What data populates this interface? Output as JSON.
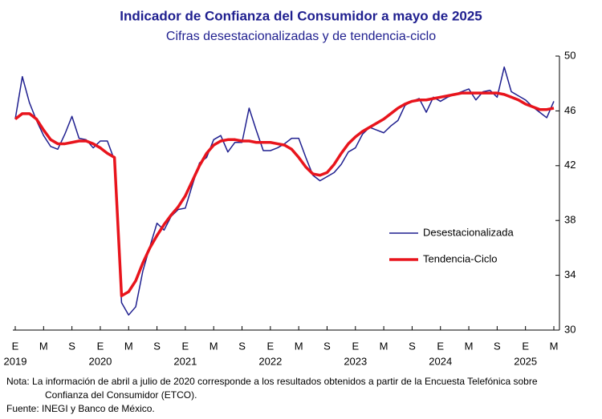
{
  "chart_data": {
    "type": "line",
    "title": "Indicador de Confianza del Consumidor a mayo de 2025",
    "subtitle": "Cifras desestacionalizadas y de tendencia-ciclo",
    "categories": [
      "E",
      null,
      null,
      null,
      "M",
      null,
      null,
      null,
      "S",
      null,
      null,
      null,
      "E",
      null,
      null,
      null,
      "M",
      null,
      null,
      null,
      "S",
      null,
      null,
      null,
      "E",
      null,
      null,
      null,
      "M",
      null,
      null,
      null,
      "S",
      null,
      null,
      null,
      "E",
      null,
      null,
      null,
      "M",
      null,
      null,
      null,
      "S",
      null,
      null,
      null,
      "E",
      null,
      null,
      null,
      "M",
      null,
      null,
      null,
      "S",
      null,
      null,
      null,
      "E",
      null,
      null,
      null,
      "M",
      null,
      null,
      null,
      "S",
      null,
      null,
      null,
      "E",
      null,
      null,
      null,
      "M"
    ],
    "years": [
      "2019",
      null,
      null,
      null,
      null,
      null,
      null,
      null,
      null,
      null,
      null,
      null,
      "2020",
      null,
      null,
      null,
      null,
      null,
      null,
      null,
      null,
      null,
      null,
      null,
      "2021",
      null,
      null,
      null,
      null,
      null,
      null,
      null,
      null,
      null,
      null,
      null,
      "2022",
      null,
      null,
      null,
      null,
      null,
      null,
      null,
      null,
      null,
      null,
      null,
      "2023",
      null,
      null,
      null,
      null,
      null,
      null,
      null,
      null,
      null,
      null,
      null,
      "2024",
      null,
      null,
      null,
      null,
      null,
      null,
      null,
      null,
      null,
      null,
      null,
      "2025",
      null,
      null,
      null,
      null
    ],
    "series": [
      {
        "name": "Desestacionalizada",
        "color": "#1f1f8f",
        "width": 1.5,
        "values": [
          45.4,
          48.5,
          46.6,
          45.3,
          44.2,
          43.4,
          43.2,
          44.3,
          45.6,
          44.0,
          43.9,
          43.3,
          43.8,
          43.8,
          42.4,
          32.0,
          31.1,
          31.7,
          34.3,
          36.1,
          37.8,
          37.3,
          38.3,
          38.8,
          38.9,
          40.6,
          42.2,
          42.6,
          43.9,
          44.2,
          43.0,
          43.7,
          43.7,
          46.2,
          44.6,
          43.1,
          43.1,
          43.3,
          43.6,
          44.0,
          44.0,
          42.6,
          41.3,
          40.9,
          41.2,
          41.5,
          42.1,
          43.0,
          43.3,
          44.3,
          44.8,
          44.6,
          44.4,
          44.9,
          45.3,
          46.4,
          46.7,
          46.9,
          45.9,
          47.0,
          46.7,
          47.0,
          47.2,
          47.4,
          47.6,
          46.8,
          47.4,
          47.5,
          47.0,
          49.2,
          47.4,
          47.1,
          46.8,
          46.3,
          45.9,
          45.5,
          46.7
        ]
      },
      {
        "name": "Tendencia-Ciclo",
        "color": "#e8141c",
        "width": 3.5,
        "values": [
          45.4,
          45.8,
          45.8,
          45.4,
          44.6,
          43.9,
          43.6,
          43.6,
          43.7,
          43.8,
          43.8,
          43.6,
          43.3,
          42.9,
          42.6,
          32.5,
          32.8,
          33.6,
          34.9,
          36.0,
          36.9,
          37.7,
          38.4,
          39.0,
          39.8,
          40.9,
          42.0,
          42.9,
          43.5,
          43.8,
          43.9,
          43.9,
          43.8,
          43.8,
          43.7,
          43.7,
          43.7,
          43.6,
          43.5,
          43.2,
          42.6,
          41.9,
          41.4,
          41.3,
          41.5,
          42.1,
          42.9,
          43.6,
          44.1,
          44.5,
          44.8,
          45.1,
          45.4,
          45.8,
          46.2,
          46.5,
          46.7,
          46.8,
          46.8,
          46.9,
          47.0,
          47.1,
          47.2,
          47.3,
          47.3,
          47.3,
          47.3,
          47.3,
          47.3,
          47.2,
          47.0,
          46.8,
          46.5,
          46.3,
          46.1,
          46.1,
          46.2
        ]
      }
    ],
    "ylim": [
      30,
      50
    ],
    "yticks": [
      30,
      34,
      38,
      42,
      46,
      50
    ],
    "y_axis_side": "right",
    "grid": false,
    "legend": "center-right"
  },
  "notes": {
    "nota": "Nota: La información de abril a julio de 2020 corresponde a los resultados obtenidos a partir de la Encuesta Telefónica sobre",
    "nota_cont": "Confianza del Consumidor (ETCO).",
    "fuente": "Fuente: INEGI y Banco de México."
  }
}
